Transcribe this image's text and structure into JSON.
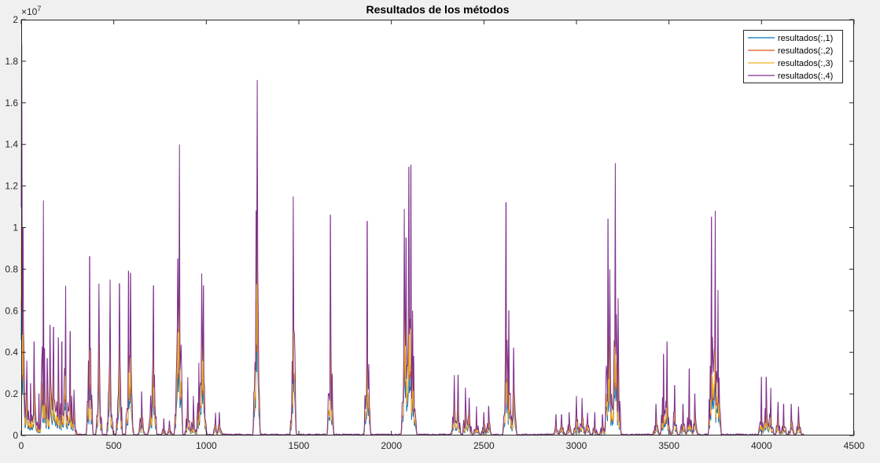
{
  "chart_data": {
    "type": "line",
    "title": "Resultados de los métodos",
    "y_exponent_label": "×10",
    "y_exponent": "7",
    "xlim": [
      0,
      4500
    ],
    "ylim": [
      0,
      2
    ],
    "x_ticks": [
      0,
      500,
      1000,
      1500,
      2000,
      2500,
      3000,
      3500,
      4000,
      4500
    ],
    "y_ticks": [
      0,
      0.2,
      0.4,
      0.6,
      0.8,
      1,
      1.2,
      1.4,
      1.6,
      1.8,
      2
    ],
    "y_tick_labels": [
      "0",
      "0.2",
      "0.4",
      "0.6",
      "0.8",
      "1",
      "1.2",
      "1.4",
      "1.6",
      "1.8",
      "2"
    ],
    "grid": false,
    "legend_position": "top-right",
    "series": [
      {
        "name": "resultados(:,1)",
        "color": "#0072BD",
        "scale": 0.42
      },
      {
        "name": "resultados(:,2)",
        "color": "#D95319",
        "scale": 0.55
      },
      {
        "name": "resultados(:,3)",
        "color": "#EDB120",
        "scale": 0.6
      },
      {
        "name": "resultados(:,4)",
        "color": "#7E2F8E",
        "scale": 1.0
      }
    ],
    "peaks_series4": [
      [
        2,
        1.88
      ],
      [
        10,
        1.0
      ],
      [
        30,
        0.36
      ],
      [
        50,
        0.25
      ],
      [
        70,
        0.45
      ],
      [
        95,
        0.2
      ],
      [
        120,
        1.13
      ],
      [
        140,
        0.37
      ],
      [
        155,
        0.53
      ],
      [
        175,
        0.52
      ],
      [
        200,
        0.47
      ],
      [
        220,
        0.45
      ],
      [
        240,
        0.72
      ],
      [
        265,
        0.5
      ],
      [
        285,
        0.22
      ],
      [
        370,
        0.86
      ],
      [
        420,
        0.73
      ],
      [
        480,
        0.75
      ],
      [
        530,
        0.73
      ],
      [
        580,
        0.79
      ],
      [
        590,
        0.78
      ],
      [
        650,
        0.21
      ],
      [
        700,
        0.19
      ],
      [
        715,
        0.72
      ],
      [
        770,
        0.08
      ],
      [
        800,
        0.07
      ],
      [
        845,
        0.85
      ],
      [
        855,
        1.4
      ],
      [
        900,
        0.28
      ],
      [
        930,
        0.19
      ],
      [
        960,
        0.35
      ],
      [
        975,
        0.78
      ],
      [
        985,
        0.72
      ],
      [
        1050,
        0.11
      ],
      [
        1070,
        0.11
      ],
      [
        1270,
        1.08
      ],
      [
        1275,
        1.71
      ],
      [
        1470,
        1.15
      ],
      [
        1670,
        1.06
      ],
      [
        1870,
        1.03
      ],
      [
        2070,
        1.09
      ],
      [
        2080,
        0.95
      ],
      [
        2095,
        1.29
      ],
      [
        2105,
        1.3
      ],
      [
        2115,
        0.6
      ],
      [
        2120,
        0.38
      ],
      [
        2340,
        0.29
      ],
      [
        2360,
        0.29
      ],
      [
        2400,
        0.23
      ],
      [
        2420,
        0.18
      ],
      [
        2460,
        0.14
      ],
      [
        2500,
        0.11
      ],
      [
        2525,
        0.14
      ],
      [
        2620,
        1.12
      ],
      [
        2635,
        0.6
      ],
      [
        2660,
        0.42
      ],
      [
        2890,
        0.1
      ],
      [
        2920,
        0.1
      ],
      [
        2960,
        0.11
      ],
      [
        3000,
        0.19
      ],
      [
        3030,
        0.18
      ],
      [
        3060,
        0.11
      ],
      [
        3100,
        0.11
      ],
      [
        3140,
        0.1
      ],
      [
        3170,
        1.04
      ],
      [
        3180,
        0.8
      ],
      [
        3210,
        1.31
      ],
      [
        3225,
        0.66
      ],
      [
        3430,
        0.15
      ],
      [
        3470,
        0.39
      ],
      [
        3490,
        0.45
      ],
      [
        3530,
        0.24
      ],
      [
        3575,
        0.15
      ],
      [
        3610,
        0.32
      ],
      [
        3640,
        0.2
      ],
      [
        3730,
        1.05
      ],
      [
        3750,
        1.08
      ],
      [
        3765,
        0.7
      ],
      [
        4000,
        0.28
      ],
      [
        4025,
        0.28
      ],
      [
        4050,
        0.23
      ],
      [
        4090,
        0.16
      ],
      [
        4120,
        0.15
      ],
      [
        4160,
        0.15
      ],
      [
        4200,
        0.14
      ]
    ]
  }
}
